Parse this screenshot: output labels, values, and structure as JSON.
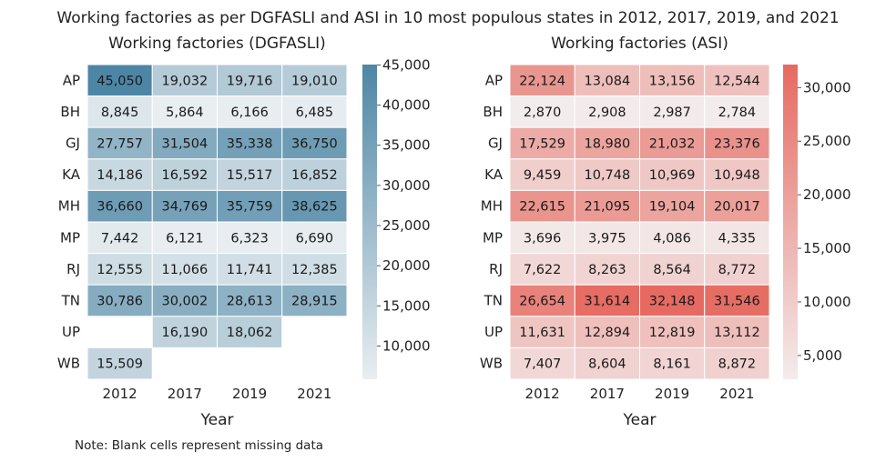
{
  "title": "Working factories as per DGFASLI and ASI in 10 most populous states in 2012, 2017, 2019, and 2021",
  "note": "Note: Blank cells represent missing data",
  "chart_data": [
    {
      "type": "heatmap",
      "title": "Working factories (DGFASLI)",
      "xlabel": "Year",
      "ylabel": "",
      "x": [
        "2012",
        "2017",
        "2019",
        "2021"
      ],
      "y": [
        "AP",
        "BH",
        "GJ",
        "KA",
        "MH",
        "MP",
        "RJ",
        "TN",
        "UP",
        "WB"
      ],
      "values": [
        [
          45050,
          19032,
          19716,
          19010
        ],
        [
          8845,
          5864,
          6166,
          6485
        ],
        [
          27757,
          31504,
          35338,
          36750
        ],
        [
          14186,
          16592,
          15517,
          16852
        ],
        [
          36660,
          34769,
          35759,
          38625
        ],
        [
          7442,
          6121,
          6323,
          6690
        ],
        [
          12555,
          11066,
          11741,
          12385
        ],
        [
          30786,
          30002,
          28613,
          28915
        ],
        [
          null,
          16190,
          18062,
          null
        ],
        [
          15509,
          null,
          null,
          null
        ]
      ],
      "labels": [
        [
          "45,050",
          "19,032",
          "19,716",
          "19,010"
        ],
        [
          "8,845",
          "5,864",
          "6,166",
          "6,485"
        ],
        [
          "27,757",
          "31,504",
          "35,338",
          "36,750"
        ],
        [
          "14,186",
          "16,592",
          "15,517",
          "16,852"
        ],
        [
          "36,660",
          "34,769",
          "35,759",
          "38,625"
        ],
        [
          "7,442",
          "6,121",
          "6,323",
          "6,690"
        ],
        [
          "12,555",
          "11,066",
          "11,741",
          "12,385"
        ],
        [
          "30,786",
          "30,002",
          "28,613",
          "28,915"
        ],
        [
          "",
          "16,190",
          "18,062",
          ""
        ],
        [
          "15,509",
          "",
          "",
          ""
        ]
      ],
      "colorbar": {
        "min": 5864,
        "max": 45050,
        "low_color": "#e9eef1",
        "high_color": "#4d86a5",
        "ticks": [
          10000,
          15000,
          20000,
          25000,
          30000,
          35000,
          40000,
          45000
        ],
        "tick_labels": [
          "10,000",
          "15,000",
          "20,000",
          "25,000",
          "30,000",
          "35,000",
          "40,000",
          "45,000"
        ]
      }
    },
    {
      "type": "heatmap",
      "title": "Working factories (ASI)",
      "xlabel": "Year",
      "ylabel": "",
      "x": [
        "2012",
        "2017",
        "2019",
        "2021"
      ],
      "y": [
        "AP",
        "BH",
        "GJ",
        "KA",
        "MH",
        "MP",
        "RJ",
        "TN",
        "UP",
        "WB"
      ],
      "values": [
        [
          22124,
          13084,
          13156,
          12544
        ],
        [
          2870,
          2908,
          2987,
          2784
        ],
        [
          17529,
          18980,
          21032,
          23376
        ],
        [
          9459,
          10748,
          10969,
          10948
        ],
        [
          22615,
          21095,
          19104,
          20017
        ],
        [
          3696,
          3975,
          4086,
          4335
        ],
        [
          7622,
          8263,
          8564,
          8772
        ],
        [
          26654,
          31614,
          32148,
          31546
        ],
        [
          11631,
          12894,
          12819,
          13112
        ],
        [
          7407,
          8604,
          8161,
          8872
        ]
      ],
      "labels": [
        [
          "22,124",
          "13,084",
          "13,156",
          "12,544"
        ],
        [
          "2,870",
          "2,908",
          "2,987",
          "2,784"
        ],
        [
          "17,529",
          "18,980",
          "21,032",
          "23,376"
        ],
        [
          "9,459",
          "10,748",
          "10,969",
          "10,948"
        ],
        [
          "22,615",
          "21,095",
          "19,104",
          "20,017"
        ],
        [
          "3,696",
          "3,975",
          "4,086",
          "4,335"
        ],
        [
          "7,622",
          "8,263",
          "8,564",
          "8,772"
        ],
        [
          "26,654",
          "31,614",
          "32,148",
          "31,546"
        ],
        [
          "11,631",
          "12,894",
          "12,819",
          "13,112"
        ],
        [
          "7,407",
          "8,604",
          "8,161",
          "8,872"
        ]
      ],
      "colorbar": {
        "min": 2784,
        "max": 32148,
        "low_color": "#f3ecec",
        "high_color": "#e66a61",
        "ticks": [
          5000,
          10000,
          15000,
          20000,
          25000,
          30000
        ],
        "tick_labels": [
          "5,000",
          "10,000",
          "15,000",
          "20,000",
          "25,000",
          "30,000"
        ]
      }
    }
  ]
}
